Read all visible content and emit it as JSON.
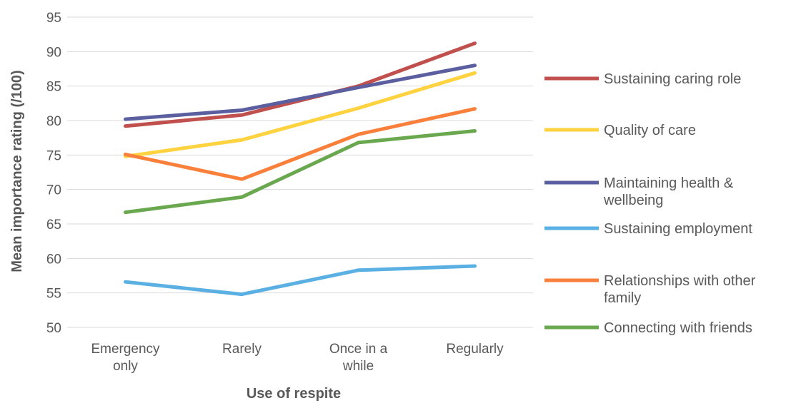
{
  "chart_data": {
    "type": "line",
    "categories": [
      [
        "Emergency",
        "only"
      ],
      [
        "Rarely"
      ],
      [
        "Once in a",
        "while"
      ],
      [
        "Regularly"
      ]
    ],
    "xlabel": "Use of respite",
    "ylabel": "Mean importance rating (/100)",
    "ylim": [
      50,
      95
    ],
    "yticks": [
      50,
      55,
      60,
      65,
      70,
      75,
      80,
      85,
      90,
      95
    ],
    "grid": true,
    "legend_position": "right",
    "series": [
      {
        "name": "Sustaining caring role",
        "legend_lines": [
          "Sustaining caring role"
        ],
        "color": "#C0504D",
        "values": [
          79.2,
          80.8,
          85.0,
          91.2
        ]
      },
      {
        "name": "Quality of care",
        "legend_lines": [
          "Quality of care"
        ],
        "color": "#FFD23F",
        "values": [
          74.8,
          77.2,
          81.8,
          86.9
        ]
      },
      {
        "name": "Maintaining health & wellbeing",
        "legend_lines": [
          "Maintaining health &",
          "wellbeing"
        ],
        "color": "#5B5FA0",
        "values": [
          80.2,
          81.5,
          84.8,
          88.0
        ]
      },
      {
        "name": "Sustaining employment",
        "legend_lines": [
          "Sustaining employment"
        ],
        "color": "#5AB0E2",
        "values": [
          56.6,
          54.8,
          58.3,
          58.9
        ]
      },
      {
        "name": "Relationships with other family",
        "legend_lines": [
          "Relationships with other",
          "family"
        ],
        "color": "#F9803A",
        "values": [
          75.1,
          71.5,
          78.0,
          81.7
        ]
      },
      {
        "name": "Connecting with friends",
        "legend_lines": [
          "Connecting with friends"
        ],
        "color": "#6AA84F",
        "values": [
          66.7,
          68.9,
          76.8,
          78.5
        ]
      }
    ]
  }
}
